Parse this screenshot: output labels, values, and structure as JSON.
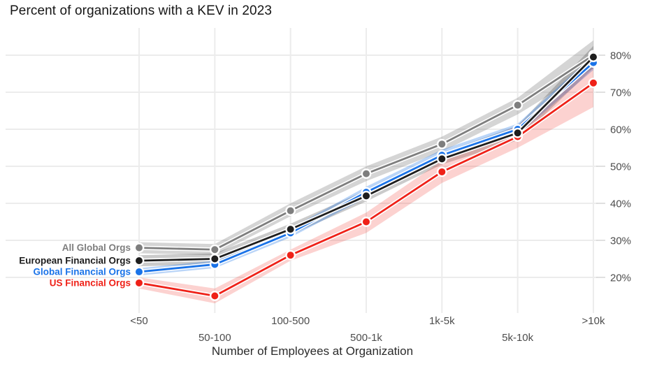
{
  "title": "Percent of organizations with a KEV in 2023",
  "chart_data": {
    "type": "line",
    "title": "Percent of organizations with a KEV in 2023",
    "xlabel": "Number of Employees at Organization",
    "ylabel": "",
    "categories": [
      "<50",
      "50-100",
      "100-500",
      "500-1k",
      "1k-5k",
      "5k-10k",
      ">10k"
    ],
    "ylim": [
      12,
      86
    ],
    "grid": true,
    "legend_position": "left-inline",
    "y_axis": {
      "side": "right",
      "tick_values": [
        20,
        30,
        40,
        50,
        60,
        70,
        80
      ],
      "tick_labels": [
        "20%",
        "30%",
        "40%",
        "50%",
        "60%",
        "70%",
        "80%"
      ]
    },
    "series": [
      {
        "name": "All Global Orgs",
        "color": "#7e7e7e",
        "band_color": "rgba(125,125,125,0.32)",
        "values": [
          28,
          27.5,
          38,
          48,
          56,
          66.5,
          80
        ],
        "band_upper": [
          29.5,
          29,
          40,
          50,
          58,
          68.5,
          84
        ],
        "band_lower": [
          26.5,
          26,
          36.5,
          46,
          54,
          64,
          76.5
        ]
      },
      {
        "name": "European Financial Orgs",
        "color": "#1e1e1e",
        "band_color": "rgba(70,70,70,0.28)",
        "values": [
          24.5,
          25,
          33,
          42,
          52,
          59,
          79.5
        ],
        "band_upper": [
          26,
          26.5,
          34.5,
          43.5,
          53.5,
          61,
          82.5
        ],
        "band_lower": [
          23,
          23.5,
          31.5,
          40.5,
          50.5,
          57,
          76.5
        ]
      },
      {
        "name": "Global Financial Orgs",
        "color": "#1a73e8",
        "band_color": "rgba(26,115,232,0.30)",
        "values": [
          21.5,
          23.5,
          32,
          43,
          53,
          60,
          78
        ],
        "band_upper": [
          22.5,
          24.5,
          33.2,
          44.5,
          54.5,
          61.5,
          80
        ],
        "band_lower": [
          20.5,
          22.5,
          30.8,
          41.5,
          51.5,
          58.5,
          76
        ]
      },
      {
        "name": "US Financial Orgs",
        "color": "#ef2118",
        "band_color": "rgba(240,50,40,0.22)",
        "values": [
          18.5,
          15,
          26,
          35,
          48.5,
          58,
          72.5
        ],
        "band_upper": [
          20,
          17,
          27.5,
          37.5,
          51.5,
          61,
          77
        ],
        "band_lower": [
          17,
          13,
          24.5,
          32,
          45.5,
          55,
          66
        ]
      }
    ],
    "style": {
      "gridline_color": "#ececec",
      "tick_mark_color": "#d8d8d8",
      "tick_label_color": "#4d4d4d",
      "title_color": "#161616",
      "axis_title_color": "#2b2b2b",
      "background": "#ffffff"
    }
  }
}
